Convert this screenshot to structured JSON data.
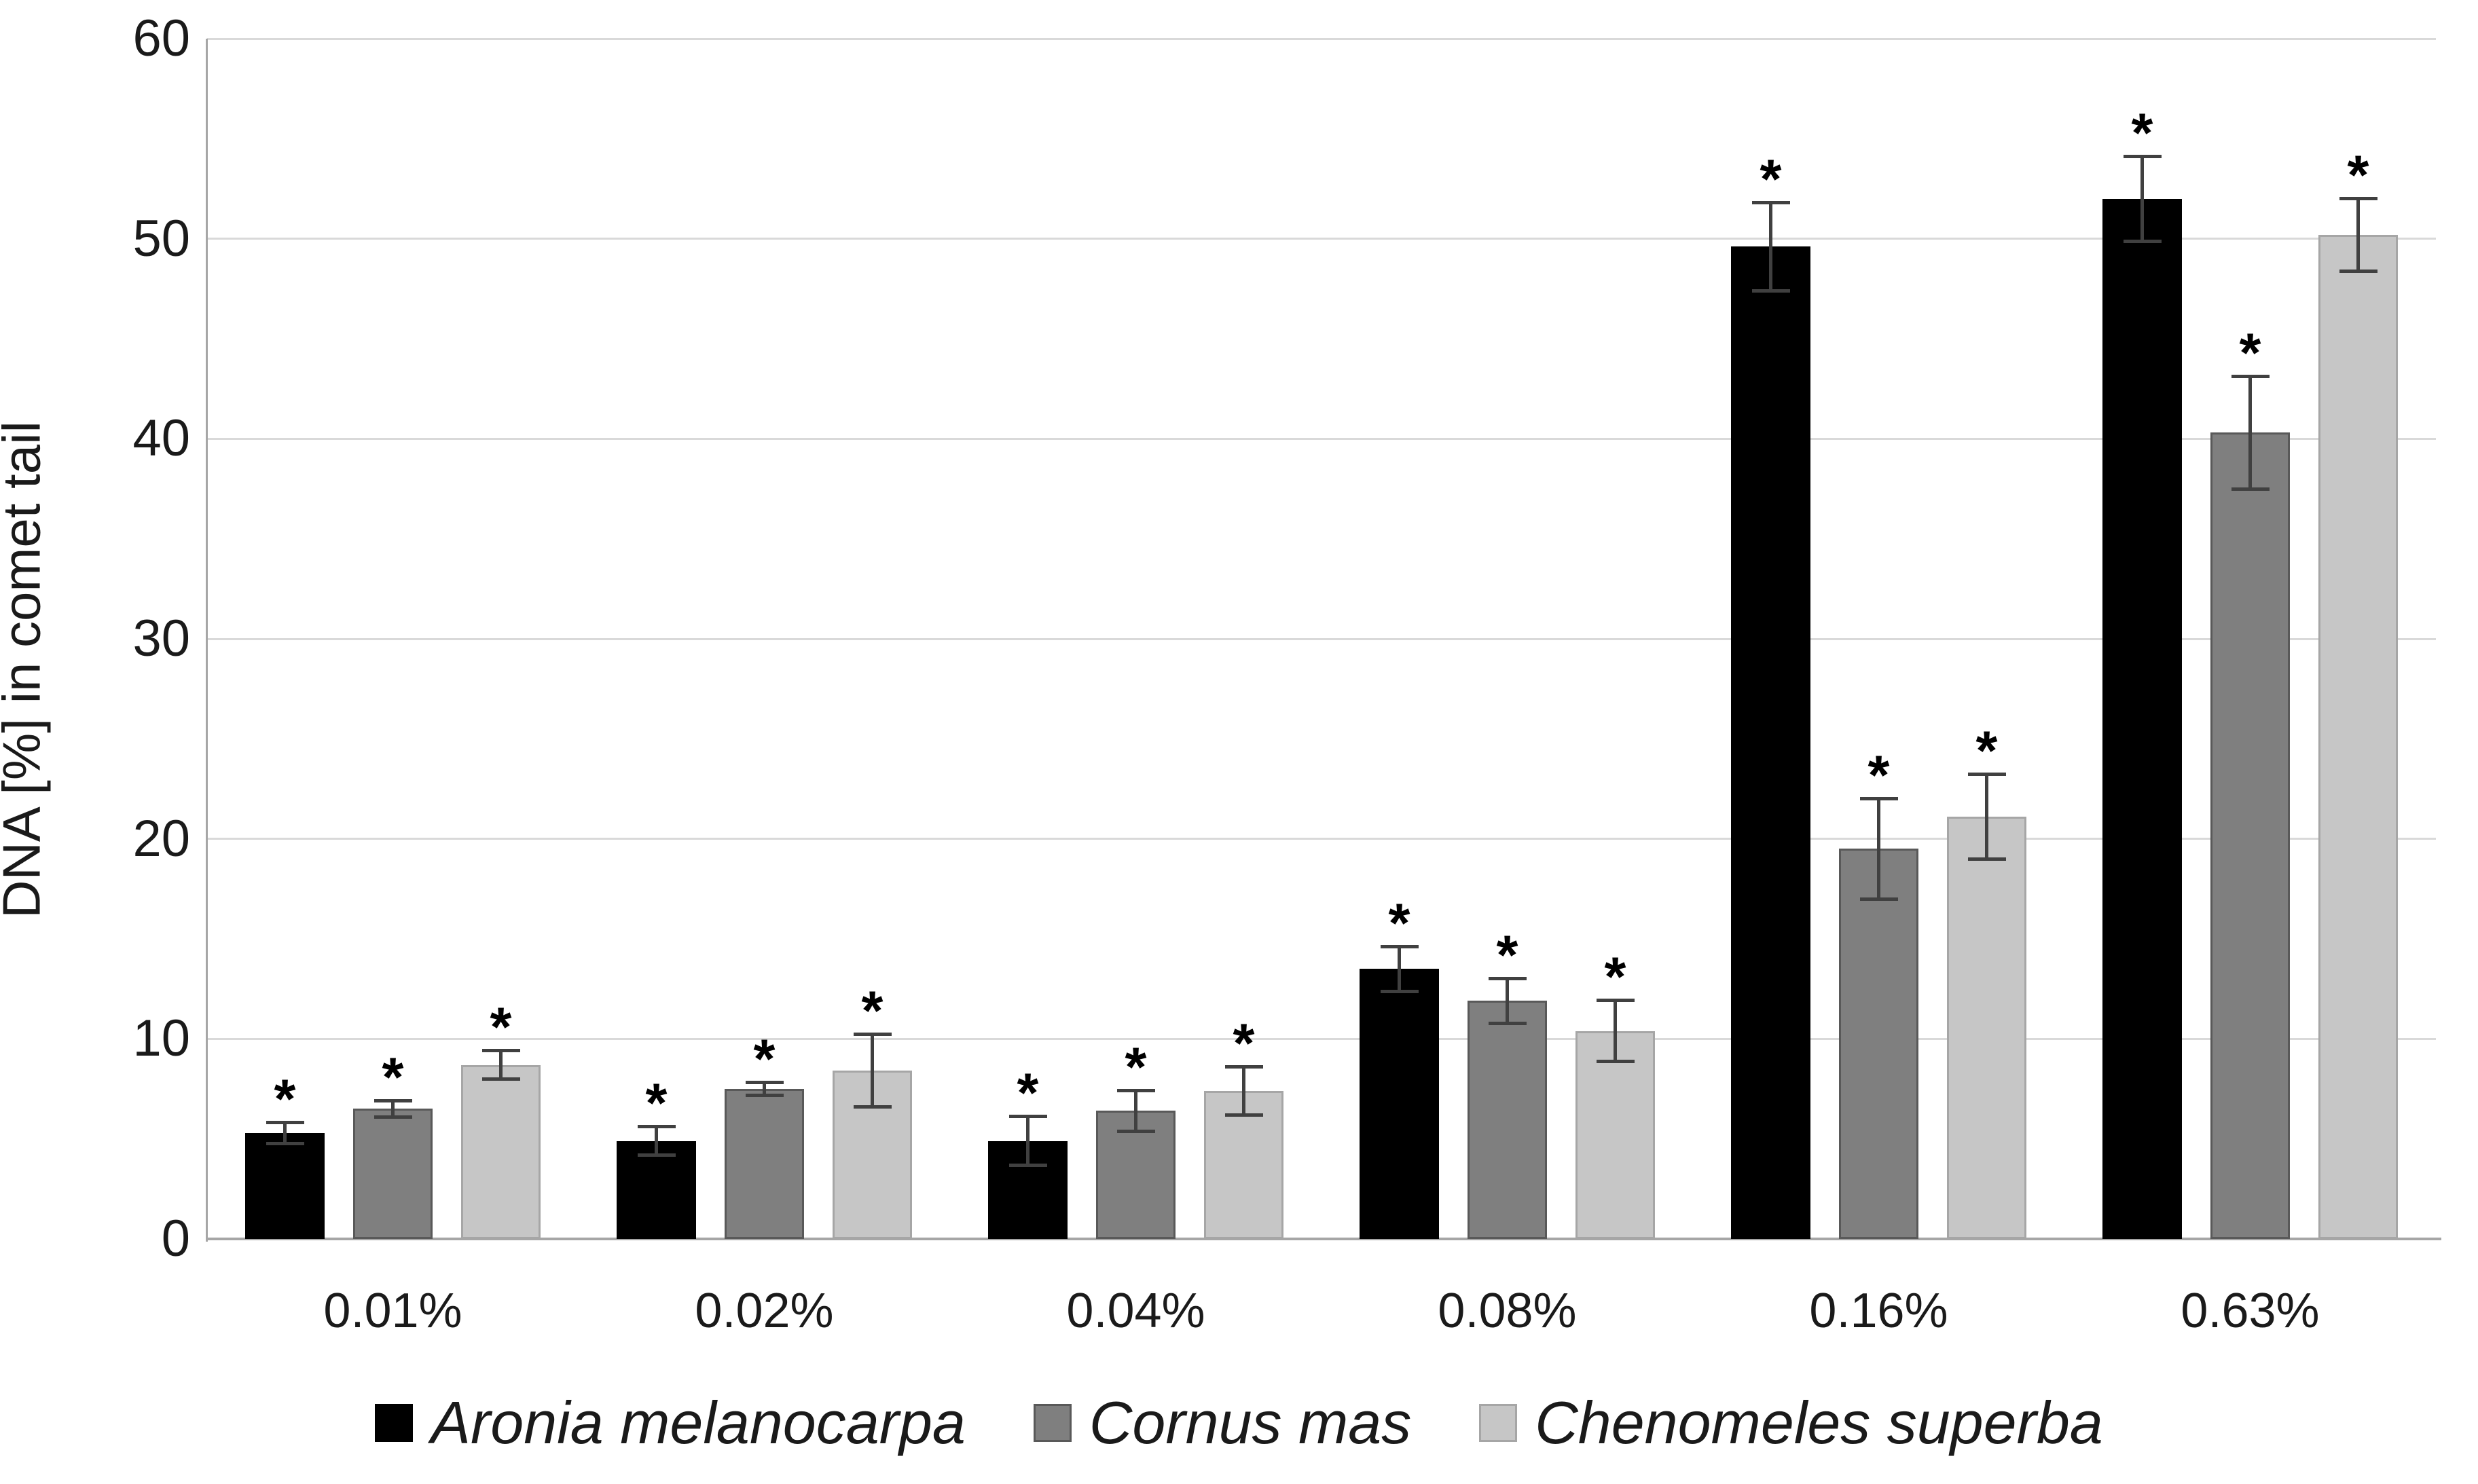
{
  "chart_data": {
    "type": "bar",
    "title": "",
    "xlabel": "",
    "ylabel": "DNA [%] in comet tail",
    "ylim": [
      0,
      60
    ],
    "yticks": [
      0,
      10,
      20,
      30,
      40,
      50,
      60
    ],
    "grid": "horizontal-only",
    "legend_position": "bottom",
    "significance_marker": "*",
    "categories": [
      "0.01%",
      "0.02%",
      "0.04%",
      "0.08%",
      "0.16%",
      "0.63%"
    ],
    "series": [
      {
        "name": "Aronia melanocarpa",
        "color": "#000000",
        "border_color": "#000000",
        "values": [
          5.3,
          4.9,
          4.9,
          13.5,
          49.6,
          52.0
        ],
        "errors": [
          0.6,
          0.8,
          1.3,
          1.2,
          2.3,
          2.2
        ],
        "significant": [
          true,
          true,
          true,
          true,
          true,
          true
        ]
      },
      {
        "name": "Cornus mas",
        "color": "#7f7f7f",
        "border_color": "#595959",
        "values": [
          6.5,
          7.5,
          6.4,
          11.9,
          19.5,
          40.3
        ],
        "errors": [
          0.5,
          0.4,
          1.1,
          1.2,
          2.6,
          2.9
        ],
        "significant": [
          true,
          true,
          true,
          true,
          true,
          true
        ]
      },
      {
        "name": "Chenomeles superba",
        "color": "#c6c6c6",
        "border_color": "#a6a6a6",
        "values": [
          8.7,
          8.4,
          7.4,
          10.4,
          21.1,
          50.2
        ],
        "errors": [
          0.8,
          1.9,
          1.3,
          1.6,
          2.2,
          1.9
        ],
        "significant": [
          true,
          true,
          true,
          true,
          true,
          true
        ]
      }
    ],
    "colors": {
      "gridline": "#d9d9d9",
      "axis": "#a6a6a6",
      "error_bar": "#404040",
      "text": "#1a1a1a",
      "background": "#ffffff"
    }
  }
}
